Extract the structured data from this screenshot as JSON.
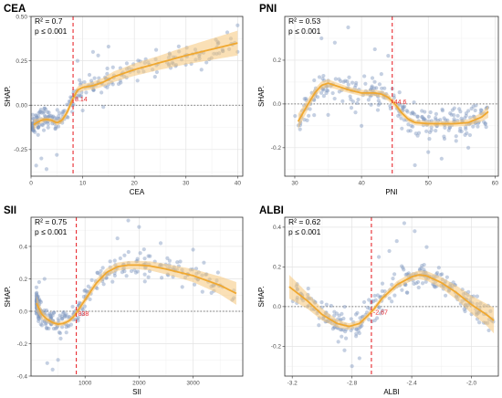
{
  "chart_data": [
    {
      "type": "scatter",
      "title": "CEA",
      "xlabel": "CEA",
      "ylabel": "SHAP.",
      "r2_text": "R² = 0.7",
      "p_text": "p ≤ 0.001",
      "threshold": 8.14,
      "threshold_label": "8.14",
      "xlim": [
        0,
        41
      ],
      "ylim": [
        -0.4,
        0.5
      ],
      "xticks": [
        0,
        10,
        20,
        30,
        40
      ],
      "yticks": [
        -0.25,
        0.0,
        0.25,
        0.5
      ],
      "ytick_labels": [
        "-0.25",
        "0.00",
        "0.25",
        "0.50"
      ],
      "trend": {
        "x": [
          0.5,
          1,
          2,
          3,
          4,
          5,
          6,
          7,
          8,
          9,
          10,
          11,
          12,
          14,
          16,
          18,
          20,
          25,
          30,
          35,
          40
        ],
        "y": [
          -0.11,
          -0.1,
          -0.085,
          -0.08,
          -0.085,
          -0.1,
          -0.085,
          -0.04,
          0.03,
          0.085,
          0.1,
          0.105,
          0.11,
          0.13,
          0.16,
          0.18,
          0.2,
          0.24,
          0.28,
          0.315,
          0.35
        ],
        "band": [
          0.03,
          0.022,
          0.015,
          0.012,
          0.012,
          0.015,
          0.018,
          0.02,
          0.022,
          0.02,
          0.02,
          0.02,
          0.022,
          0.025,
          0.03,
          0.032,
          0.035,
          0.04,
          0.05,
          0.06,
          0.07
        ]
      },
      "scatter": {
        "x_range": [
          0.3,
          40
        ],
        "x_skew": 2.2,
        "jitter": 0.07,
        "n": 260,
        "extra_points": [
          [
            1,
            -0.34
          ],
          [
            3,
            -0.36
          ],
          [
            2,
            -0.3
          ],
          [
            5,
            -0.28
          ],
          [
            12,
            0.3
          ],
          [
            15,
            0.33
          ],
          [
            9,
            0.25
          ],
          [
            13,
            0.28
          ],
          [
            33,
            0.2
          ],
          [
            38,
            0.41
          ],
          [
            40,
            0.45
          ],
          [
            28,
            0.22
          ],
          [
            24,
            0.16
          ],
          [
            10,
            -0.03
          ],
          [
            14,
            -0.01
          ]
        ]
      }
    },
    {
      "type": "scatter",
      "title": "PNI",
      "xlabel": "PNI",
      "ylabel": "SHAP.",
      "r2_text": "R² = 0.53",
      "p_text": "p ≤ 0.001",
      "threshold": 44.6,
      "threshold_label": "44.6",
      "xlim": [
        28.5,
        60.5
      ],
      "ylim": [
        -0.33,
        0.4
      ],
      "xticks": [
        30,
        40,
        50,
        60
      ],
      "yticks": [
        -0.2,
        0.0,
        0.2
      ],
      "ytick_labels": [
        "-0.2",
        "0.0",
        "0.2"
      ],
      "trend": {
        "x": [
          30.5,
          32,
          33,
          34,
          35,
          36,
          38,
          40,
          42,
          43,
          44,
          45,
          46,
          47,
          48,
          50,
          52,
          54,
          56,
          58,
          59
        ],
        "y": [
          -0.08,
          0.0,
          0.05,
          0.085,
          0.095,
          0.085,
          0.065,
          0.05,
          0.05,
          0.045,
          0.03,
          0.0,
          -0.04,
          -0.07,
          -0.085,
          -0.09,
          -0.09,
          -0.09,
          -0.085,
          -0.06,
          -0.035
        ],
        "band": [
          0.035,
          0.025,
          0.02,
          0.018,
          0.018,
          0.016,
          0.014,
          0.014,
          0.014,
          0.015,
          0.016,
          0.016,
          0.015,
          0.013,
          0.012,
          0.012,
          0.012,
          0.013,
          0.015,
          0.02,
          0.028
        ]
      },
      "scatter": {
        "x_range": [
          30,
          59
        ],
        "x_skew": 1.0,
        "jitter": 0.08,
        "n": 280,
        "extra_points": [
          [
            34,
            0.3
          ],
          [
            36,
            0.28
          ],
          [
            38,
            0.35
          ],
          [
            42,
            0.25
          ],
          [
            44,
            0.22
          ],
          [
            35,
            -0.05
          ],
          [
            40,
            -0.1
          ],
          [
            48,
            -0.28
          ],
          [
            52,
            -0.25
          ],
          [
            56,
            -0.2
          ],
          [
            50,
            -0.22
          ]
        ]
      }
    },
    {
      "type": "scatter",
      "title": "SII",
      "xlabel": "SII",
      "ylabel": "SHAP.",
      "r2_text": "R² = 0.75",
      "p_text": "p ≤ 0.001",
      "threshold": 838,
      "threshold_label": "838",
      "xlim": [
        0,
        3920
      ],
      "ylim": [
        -0.4,
        0.58
      ],
      "xticks": [
        1000,
        2000,
        3000
      ],
      "yticks": [
        -0.4,
        -0.2,
        0.0,
        0.2,
        0.4
      ],
      "ytick_labels": [
        "-0.4",
        "-0.2",
        "0.0",
        "0.2",
        "0.4"
      ],
      "trend": {
        "x": [
          100,
          200,
          300,
          400,
          500,
          600,
          700,
          800,
          900,
          1000,
          1200,
          1400,
          1600,
          1800,
          2000,
          2200,
          2500,
          3000,
          3500,
          3800
        ],
        "y": [
          0.05,
          -0.02,
          -0.05,
          -0.07,
          -0.08,
          -0.075,
          -0.06,
          -0.03,
          0.02,
          0.07,
          0.17,
          0.24,
          0.275,
          0.285,
          0.285,
          0.28,
          0.26,
          0.22,
          0.16,
          0.11
        ],
        "band": [
          0.05,
          0.03,
          0.02,
          0.015,
          0.014,
          0.014,
          0.015,
          0.018,
          0.02,
          0.022,
          0.025,
          0.025,
          0.025,
          0.025,
          0.026,
          0.028,
          0.032,
          0.04,
          0.055,
          0.07
        ]
      },
      "scatter": {
        "x_range": [
          100,
          3800
        ],
        "x_skew": 2.4,
        "jitter": 0.09,
        "n": 300,
        "extra_points": [
          [
            1800,
            0.56
          ],
          [
            2000,
            0.52
          ],
          [
            2400,
            0.42
          ],
          [
            1600,
            0.45
          ],
          [
            3000,
            0.38
          ],
          [
            250,
            0.2
          ],
          [
            150,
            0.18
          ],
          [
            300,
            -0.32
          ],
          [
            400,
            -0.36
          ],
          [
            500,
            -0.3
          ],
          [
            2800,
            0.15
          ],
          [
            3200,
            0.3
          ]
        ]
      }
    },
    {
      "type": "scatter",
      "title": "ALBI",
      "xlabel": "ALBI",
      "ylabel": "SHAP.",
      "r2_text": "R² = 0.62",
      "p_text": "p ≤ 0.001",
      "threshold": -2.67,
      "threshold_label": "-2.67",
      "xlim": [
        -3.25,
        -1.82
      ],
      "ylim": [
        -0.35,
        0.45
      ],
      "xticks": [
        -3.2,
        -2.8,
        -2.4,
        -2.0
      ],
      "xtick_labels": [
        "-3.2",
        "-2.8",
        "-2.4",
        "-2.0"
      ],
      "yticks": [
        -0.2,
        0.0,
        0.2,
        0.4
      ],
      "ytick_labels": [
        "-0.2",
        "0.0",
        "0.2",
        "0.4"
      ],
      "trend": {
        "x": [
          -3.22,
          -3.1,
          -3.0,
          -2.9,
          -2.82,
          -2.75,
          -2.7,
          -2.65,
          -2.6,
          -2.5,
          -2.4,
          -2.35,
          -2.3,
          -2.2,
          -2.1,
          -2.0,
          -1.9,
          -1.85
        ],
        "y": [
          0.1,
          0.03,
          -0.04,
          -0.085,
          -0.1,
          -0.085,
          -0.05,
          -0.01,
          0.04,
          0.11,
          0.15,
          0.16,
          0.155,
          0.12,
          0.07,
          0.01,
          -0.04,
          -0.07
        ],
        "band": [
          0.06,
          0.04,
          0.03,
          0.02,
          0.016,
          0.015,
          0.015,
          0.015,
          0.016,
          0.018,
          0.02,
          0.022,
          0.024,
          0.028,
          0.035,
          0.045,
          0.055,
          0.065
        ]
      },
      "scatter": {
        "x_range": [
          -3.2,
          -1.85
        ],
        "x_skew": 1.0,
        "jitter": 0.08,
        "n": 280,
        "extra_points": [
          [
            -2.45,
            0.42
          ],
          [
            -2.38,
            0.38
          ],
          [
            -2.5,
            0.33
          ],
          [
            -2.3,
            0.3
          ],
          [
            -2.8,
            -0.3
          ],
          [
            -2.75,
            -0.26
          ],
          [
            -2.85,
            -0.22
          ],
          [
            -2.0,
            0.05
          ],
          [
            -1.95,
            -0.03
          ],
          [
            -2.62,
            0.25
          ],
          [
            -2.55,
            0.28
          ]
        ]
      }
    }
  ]
}
